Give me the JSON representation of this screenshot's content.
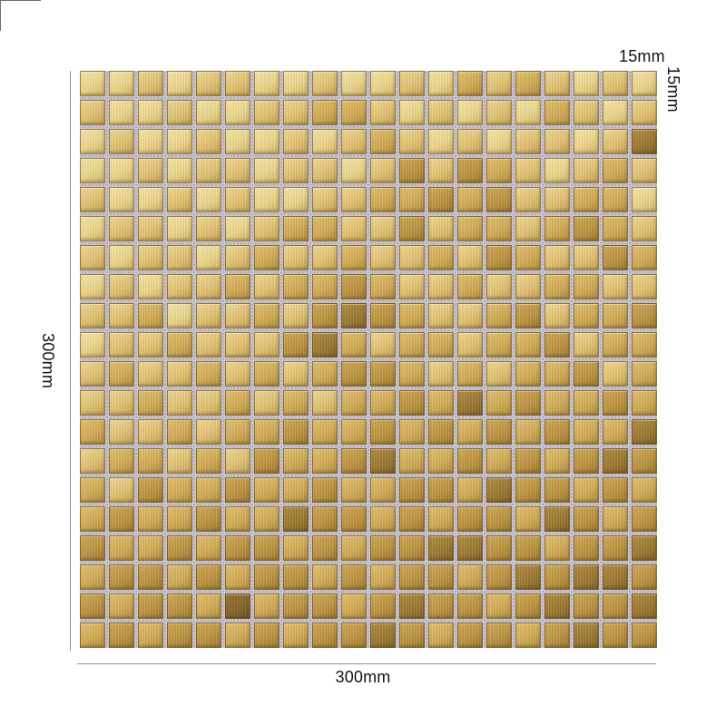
{
  "page": {
    "background": "#ffffff"
  },
  "dimensions": {
    "height_label": "300mm",
    "width_label": "300mm",
    "tile_width_label": "15mm",
    "tile_height_label": "15mm"
  },
  "annotation": {
    "line_color": "#919191",
    "text_color": "#141414"
  },
  "mosaic": {
    "rows": 20,
    "cols": 20,
    "grout_color": "#cac4cc",
    "palette": [
      {
        "name": "cream-gold",
        "light": "#f5e4a8",
        "base": "#ecd68a",
        "edge": "#d3b264"
      },
      {
        "name": "light-gold",
        "light": "#eed795",
        "base": "#e2c271",
        "edge": "#c6a152"
      },
      {
        "name": "medium-gold",
        "light": "#e0bf6f",
        "base": "#d2ac55",
        "edge": "#b28e3e"
      },
      {
        "name": "deep-gold",
        "light": "#cda756",
        "base": "#bd9440",
        "edge": "#9f7a30"
      },
      {
        "name": "bronze",
        "light": "#b08a3d",
        "base": "#9d7a32",
        "edge": "#826327"
      },
      {
        "name": "dark-bronze",
        "light": "#97732f",
        "base": "#866627",
        "edge": "#6e521f"
      }
    ],
    "tile_map": [
      [
        0,
        0,
        1,
        0,
        1,
        1,
        0,
        0,
        1,
        0,
        0,
        1,
        0,
        2,
        1,
        2,
        1,
        0,
        1,
        0
      ],
      [
        1,
        0,
        0,
        1,
        0,
        0,
        1,
        1,
        2,
        2,
        1,
        0,
        1,
        0,
        1,
        0,
        2,
        1,
        0,
        1
      ],
      [
        0,
        1,
        0,
        0,
        1,
        0,
        0,
        1,
        0,
        1,
        2,
        1,
        0,
        1,
        0,
        1,
        1,
        0,
        1,
        4
      ],
      [
        0,
        0,
        1,
        0,
        1,
        1,
        0,
        1,
        1,
        0,
        1,
        3,
        1,
        3,
        2,
        1,
        0,
        1,
        2,
        1
      ],
      [
        1,
        0,
        0,
        1,
        0,
        1,
        0,
        0,
        1,
        1,
        2,
        2,
        3,
        2,
        3,
        1,
        1,
        2,
        2,
        0
      ],
      [
        0,
        1,
        1,
        0,
        1,
        0,
        1,
        2,
        2,
        1,
        1,
        3,
        1,
        2,
        2,
        1,
        2,
        3,
        2,
        1
      ],
      [
        1,
        0,
        1,
        1,
        0,
        1,
        2,
        1,
        1,
        2,
        1,
        1,
        2,
        1,
        3,
        2,
        1,
        1,
        3,
        2
      ],
      [
        0,
        1,
        0,
        1,
        1,
        2,
        1,
        2,
        2,
        3,
        2,
        1,
        1,
        2,
        1,
        1,
        2,
        2,
        1,
        1
      ],
      [
        1,
        1,
        2,
        0,
        1,
        1,
        2,
        1,
        3,
        4,
        3,
        2,
        1,
        1,
        2,
        3,
        1,
        2,
        2,
        3
      ],
      [
        0,
        1,
        1,
        2,
        1,
        1,
        1,
        3,
        4,
        2,
        1,
        2,
        2,
        1,
        2,
        2,
        3,
        1,
        2,
        2
      ],
      [
        1,
        2,
        1,
        1,
        2,
        1,
        2,
        1,
        2,
        3,
        3,
        2,
        1,
        2,
        1,
        2,
        2,
        3,
        1,
        2
      ],
      [
        1,
        1,
        2,
        1,
        1,
        2,
        1,
        2,
        1,
        2,
        2,
        3,
        2,
        4,
        2,
        3,
        2,
        2,
        3,
        2
      ],
      [
        2,
        1,
        1,
        2,
        1,
        2,
        2,
        3,
        2,
        2,
        3,
        2,
        3,
        2,
        3,
        2,
        3,
        2,
        2,
        4
      ],
      [
        1,
        2,
        2,
        1,
        2,
        1,
        3,
        2,
        2,
        3,
        4,
        2,
        2,
        3,
        2,
        3,
        2,
        3,
        4,
        3
      ],
      [
        2,
        1,
        3,
        2,
        2,
        3,
        2,
        2,
        3,
        2,
        2,
        3,
        3,
        2,
        4,
        3,
        3,
        2,
        3,
        2
      ],
      [
        2,
        3,
        2,
        2,
        3,
        2,
        2,
        4,
        3,
        3,
        2,
        3,
        2,
        3,
        3,
        2,
        4,
        3,
        2,
        3
      ],
      [
        3,
        2,
        2,
        3,
        2,
        3,
        3,
        2,
        3,
        2,
        3,
        3,
        4,
        4,
        3,
        3,
        2,
        3,
        3,
        4
      ],
      [
        2,
        3,
        3,
        2,
        3,
        2,
        3,
        3,
        2,
        3,
        2,
        3,
        3,
        2,
        3,
        4,
        3,
        4,
        4,
        3
      ],
      [
        3,
        2,
        3,
        3,
        2,
        5,
        2,
        3,
        3,
        2,
        3,
        4,
        3,
        3,
        2,
        3,
        4,
        3,
        3,
        4
      ],
      [
        2,
        3,
        2,
        3,
        3,
        2,
        3,
        2,
        3,
        3,
        4,
        3,
        2,
        3,
        3,
        2,
        3,
        4,
        3,
        3
      ]
    ]
  }
}
